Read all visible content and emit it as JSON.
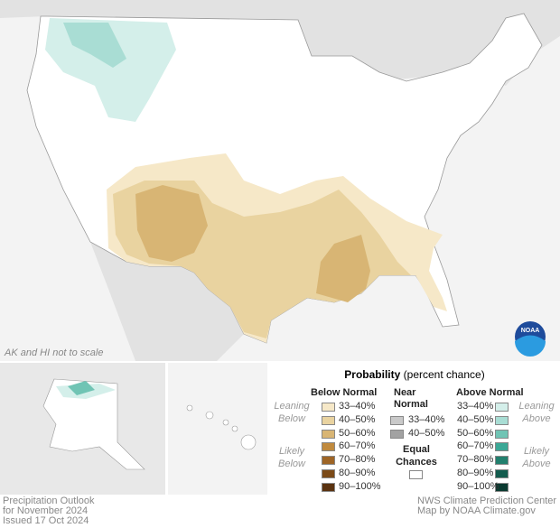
{
  "map": {
    "note": "AK and HI not to scale",
    "logo": "NOAA"
  },
  "legend": {
    "title": "Probability",
    "subtitle": "(percent chance)",
    "below": {
      "heading": "Below Normal",
      "items": [
        {
          "label": "33–40%",
          "color": "#f6e8c8"
        },
        {
          "label": "40–50%",
          "color": "#e9d3a0"
        },
        {
          "label": "50–60%",
          "color": "#d8b574"
        },
        {
          "label": "60–70%",
          "color": "#c08a3e"
        },
        {
          "label": "70–80%",
          "color": "#9e6526"
        },
        {
          "label": "80–90%",
          "color": "#7b4a17"
        },
        {
          "label": "90–100%",
          "color": "#5a3210"
        }
      ]
    },
    "near": {
      "heading": "Near Normal",
      "items": [
        {
          "label": "33–40%",
          "color": "#c9c9c9"
        },
        {
          "label": "40–50%",
          "color": "#a2a2a2"
        }
      ]
    },
    "above": {
      "heading": "Above Normal",
      "items": [
        {
          "label": "33–40%",
          "color": "#d4efea"
        },
        {
          "label": "40–50%",
          "color": "#a9ddd4"
        },
        {
          "label": "50–60%",
          "color": "#70c4b4"
        },
        {
          "label": "60–70%",
          "color": "#3ba896"
        },
        {
          "label": "70–80%",
          "color": "#22806e"
        },
        {
          "label": "80–90%",
          "color": "#145c4e"
        },
        {
          "label": "90–100%",
          "color": "#0a3a30"
        }
      ]
    },
    "side_labels": {
      "leaning_below": "Leaning Below",
      "likely_below": "Likely Below",
      "leaning_above": "Leaning Above",
      "likely_above": "Likely Above"
    },
    "equal_chances": {
      "label": "Equal Chances",
      "color": "#ffffff"
    }
  },
  "footer": {
    "left": [
      "Precipitation Outlook",
      "for November 2024",
      "Issued 17 Oct 2024"
    ],
    "right": [
      "NWS Climate Prediction Center",
      "Map by NOAA Climate.gov"
    ]
  }
}
